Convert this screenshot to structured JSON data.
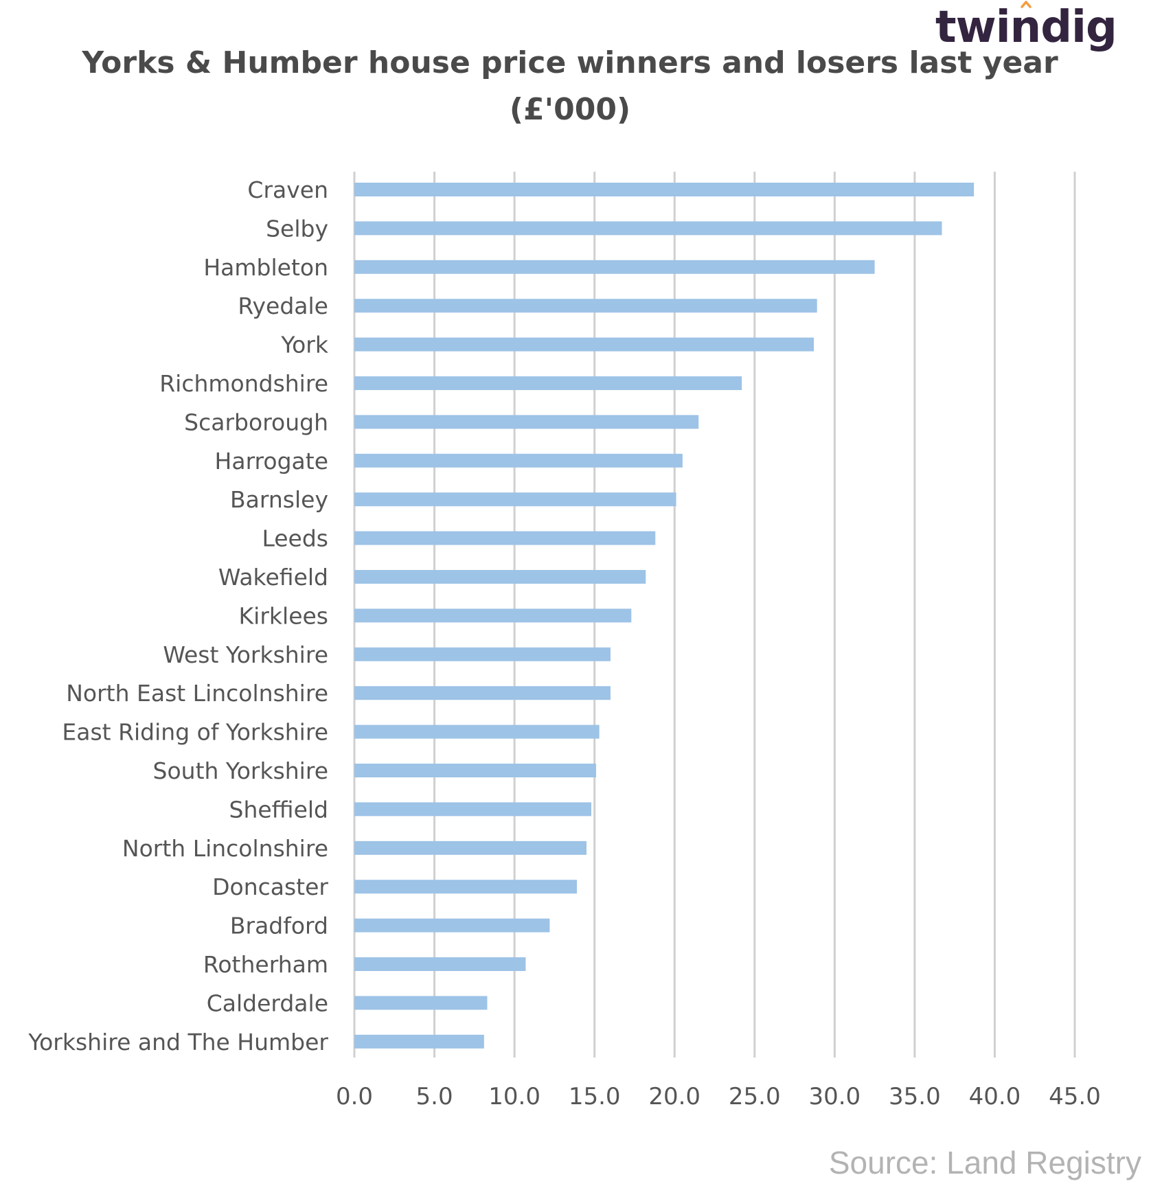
{
  "logo": {
    "text": "twindig"
  },
  "source": "Source: Land Registry",
  "chart_data": {
    "type": "bar",
    "orientation": "horizontal",
    "title": "Yorks & Humber house price winners and losers last year",
    "subtitle": "(£'000)",
    "xlim": [
      0,
      45
    ],
    "xticks": [
      "0.0",
      "5.0",
      "10.0",
      "15.0",
      "20.0",
      "25.0",
      "30.0",
      "35.0",
      "40.0",
      "45.0"
    ],
    "grid": true,
    "bar_color": "#9dc3e6",
    "categories": [
      "Craven",
      "Selby",
      "Hambleton",
      "Ryedale",
      "York",
      "Richmondshire",
      "Scarborough",
      "Harrogate",
      "Barnsley",
      "Leeds",
      "Wakefield",
      "Kirklees",
      "West Yorkshire",
      "North East Lincolnshire",
      "East Riding of Yorkshire",
      "South Yorkshire",
      "Sheffield",
      "North Lincolnshire",
      "Doncaster",
      "Bradford",
      "Rotherham",
      "Calderdale",
      "Yorkshire and The Humber"
    ],
    "values": [
      38.7,
      36.7,
      32.5,
      28.9,
      28.7,
      24.2,
      21.5,
      20.5,
      20.1,
      18.8,
      18.2,
      17.3,
      16.0,
      16.0,
      15.3,
      15.1,
      14.8,
      14.5,
      13.9,
      12.2,
      10.7,
      8.3,
      8.1
    ]
  }
}
